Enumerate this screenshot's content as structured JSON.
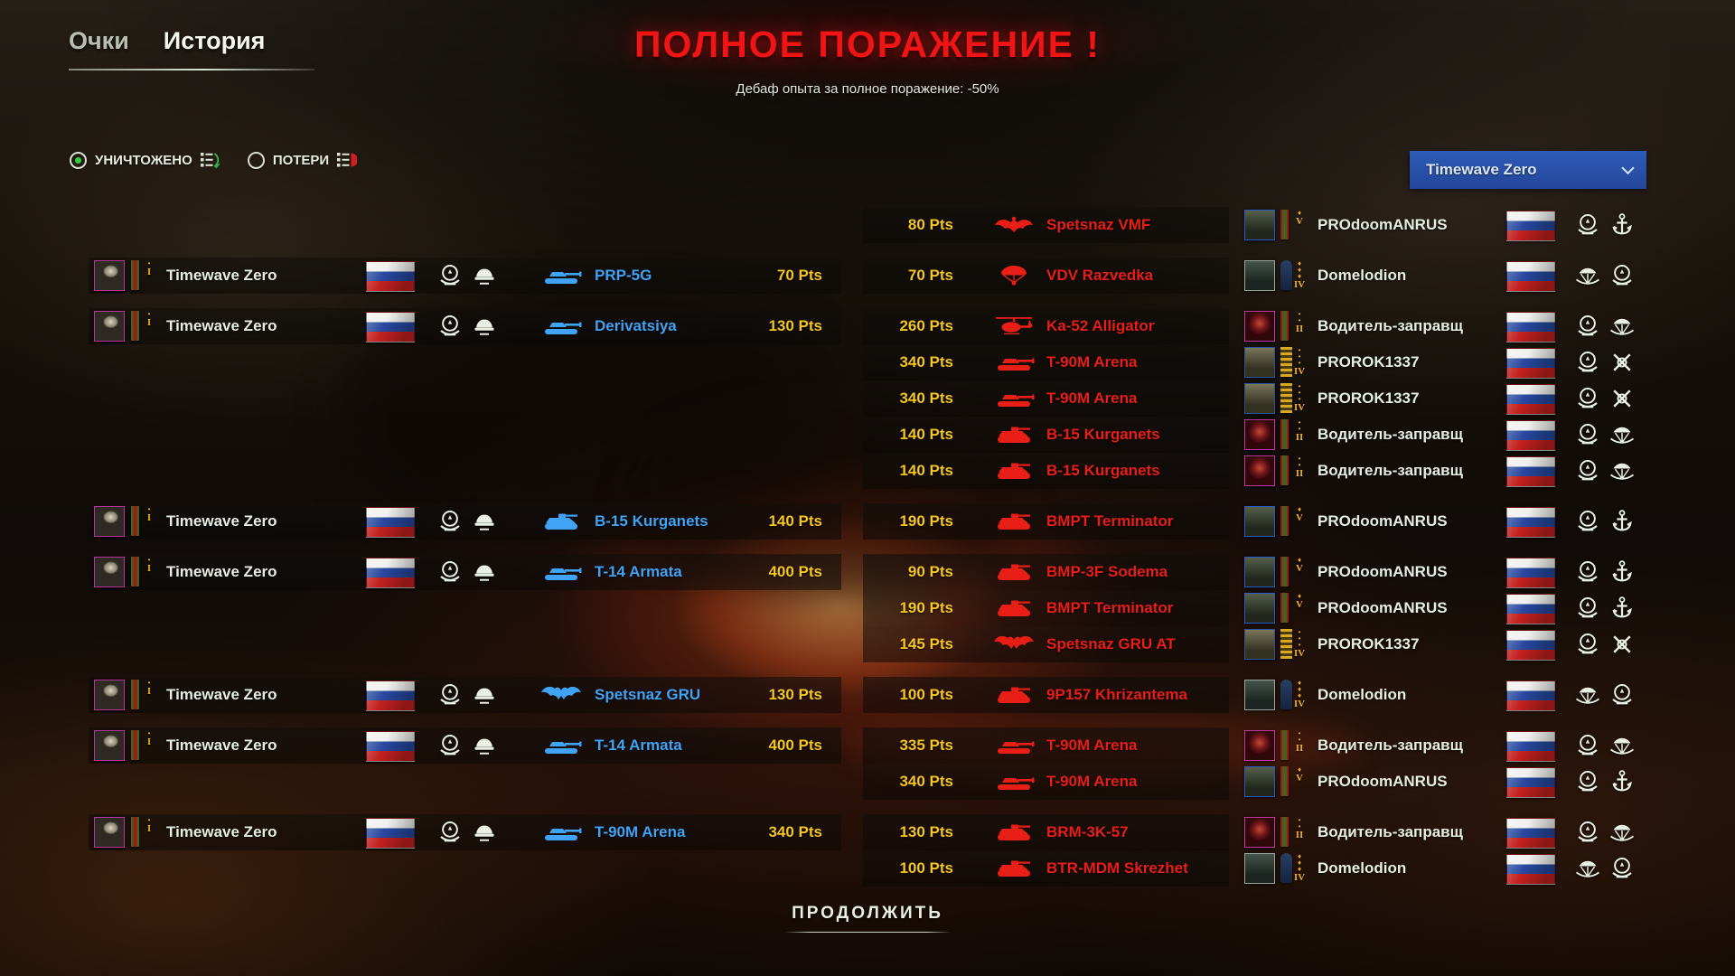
{
  "tabs": [
    {
      "label": "Очки",
      "active": false
    },
    {
      "label": "История",
      "active": true
    }
  ],
  "result": {
    "title": "ПОЛНОЕ ПОРАЖЕНИЕ !",
    "subtitle": "Дебаф опыта за полное поражение: -50%"
  },
  "filters": [
    {
      "label": "УНИЧТОЖЕНО",
      "selected": true,
      "icon": "destroyed-list-icon",
      "accent": "#2fae4a"
    },
    {
      "label": "ПОТЕРИ",
      "selected": false,
      "icon": "losses-list-icon",
      "accent": "#d41f1f"
    }
  ],
  "player_dropdown": {
    "selected": "Timewave Zero",
    "avatar": "timewave-avatar",
    "icon": "chevron-down-icon"
  },
  "continue_label": "ПРОДОЛЖИТЬ",
  "colors": {
    "title_red": "#f11414",
    "points_yellow": "#f5c61d",
    "ally_vehicle_blue": "#41a3f5",
    "enemy_vehicle_red": "#e81e17",
    "dropdown_blue": "#2e5cb8"
  },
  "ally": {
    "name": "Timewave Zero",
    "rank_numeral": "I",
    "pips": 1,
    "pip_glyph": "•",
    "avatar": "timewave-avatar",
    "insignia": "ribbon-green",
    "flag": "russia-flag",
    "emblems": [
      "wreath-emblem",
      "helmet-emblem"
    ]
  },
  "rows": [
    {
      "ally_vehicle": null,
      "ally_points": null,
      "ally_icon": null,
      "kill_points": "80 Pts",
      "kill_vehicle": "Spetsnaz VMF",
      "kill_icon": "infantry-eagle-icon",
      "player": {
        "name": "PROdoomANRUS",
        "rank_numeral": "V",
        "pips": 1,
        "pip_glyph": "♦",
        "avatar": "balaclava-avatar",
        "insignia": "ribbon-red",
        "flag": "russia-flag",
        "emblems": [
          "wreath-emblem",
          "anchor-emblem"
        ]
      }
    },
    {
      "ally_vehicle": "PRP-5G",
      "ally_points": "70 Pts",
      "ally_icon": "tank-icon",
      "kill_points": "70 Pts",
      "kill_vehicle": "VDV Razvedka",
      "kill_icon": "parachute-icon",
      "player": {
        "name": "Domelodion",
        "rank_numeral": "IV",
        "pips": 3,
        "pip_glyph": "♦",
        "avatar": "ghillie-avatar",
        "insignia": "epaulette",
        "flag": "russia-flag",
        "emblems": [
          "parachute-emblem",
          "wreath-emblem"
        ]
      }
    },
    {
      "ally_vehicle": "Derivatsiya",
      "ally_points": "130 Pts",
      "ally_icon": "tank-icon",
      "kill_points": "260 Pts",
      "kill_vehicle": "Ka-52 Alligator",
      "kill_icon": "helicopter-icon",
      "player": {
        "name": "Водитель-заправщ",
        "rank_numeral": "II",
        "pips": 2,
        "pip_glyph": "•",
        "avatar": "red-monster-avatar",
        "insignia": "ribbon-red",
        "flag": "russia-flag",
        "emblems": [
          "wreath-emblem",
          "parachute-emblem"
        ]
      }
    },
    {
      "ally_vehicle": null,
      "ally_points": null,
      "ally_icon": null,
      "kill_points": "340 Pts",
      "kill_vehicle": "T-90M Arena",
      "kill_icon": "tank-icon",
      "player": {
        "name": "PROROK1337",
        "rank_numeral": "IV",
        "pips": 3,
        "pip_glyph": "•",
        "avatar": "helmet-soldier-avatar",
        "insignia": "chevrons",
        "flag": "russia-flag",
        "emblems": [
          "wreath-emblem",
          "crossed-rifles-emblem"
        ]
      }
    },
    {
      "ally_vehicle": null,
      "ally_points": null,
      "ally_icon": null,
      "kill_points": "340 Pts",
      "kill_vehicle": "T-90M Arena",
      "kill_icon": "tank-icon",
      "player": {
        "name": "PROROK1337",
        "rank_numeral": "IV",
        "pips": 3,
        "pip_glyph": "•",
        "avatar": "helmet-soldier-avatar",
        "insignia": "chevrons",
        "flag": "russia-flag",
        "emblems": [
          "wreath-emblem",
          "crossed-rifles-emblem"
        ]
      }
    },
    {
      "ally_vehicle": null,
      "ally_points": null,
      "ally_icon": null,
      "kill_points": "140 Pts",
      "kill_vehicle": "B-15 Kurganets",
      "kill_icon": "ifv-icon",
      "player": {
        "name": "Водитель-заправщ",
        "rank_numeral": "II",
        "pips": 2,
        "pip_glyph": "•",
        "avatar": "red-monster-avatar",
        "insignia": "ribbon-red",
        "flag": "russia-flag",
        "emblems": [
          "wreath-emblem",
          "parachute-emblem"
        ]
      }
    },
    {
      "ally_vehicle": null,
      "ally_points": null,
      "ally_icon": null,
      "kill_points": "140 Pts",
      "kill_vehicle": "B-15 Kurganets",
      "kill_icon": "ifv-icon",
      "player": {
        "name": "Водитель-заправщ",
        "rank_numeral": "II",
        "pips": 2,
        "pip_glyph": "•",
        "avatar": "red-monster-avatar",
        "insignia": "ribbon-red",
        "flag": "russia-flag",
        "emblems": [
          "wreath-emblem",
          "parachute-emblem"
        ]
      }
    },
    {
      "ally_vehicle": "B-15 Kurganets",
      "ally_points": "140 Pts",
      "ally_icon": "ifv-icon",
      "kill_points": "190 Pts",
      "kill_vehicle": "BMPT Terminator",
      "kill_icon": "ifv-icon",
      "player": {
        "name": "PROdoomANRUS",
        "rank_numeral": "V",
        "pips": 1,
        "pip_glyph": "♦",
        "avatar": "balaclava-avatar",
        "insignia": "ribbon-red",
        "flag": "russia-flag",
        "emblems": [
          "wreath-emblem",
          "anchor-emblem"
        ]
      }
    },
    {
      "ally_vehicle": "T-14 Armata",
      "ally_points": "400 Pts",
      "ally_icon": "tank-icon",
      "kill_points": "90 Pts",
      "kill_vehicle": "BMP-3F Sodema",
      "kill_icon": "ifv-icon",
      "player": {
        "name": "PROdoomANRUS",
        "rank_numeral": "V",
        "pips": 1,
        "pip_glyph": "♦",
        "avatar": "balaclava-avatar",
        "insignia": "ribbon-red",
        "flag": "russia-flag",
        "emblems": [
          "wreath-emblem",
          "anchor-emblem"
        ]
      }
    },
    {
      "ally_vehicle": null,
      "ally_points": null,
      "ally_icon": null,
      "kill_points": "190 Pts",
      "kill_vehicle": "BMPT Terminator",
      "kill_icon": "ifv-icon",
      "player": {
        "name": "PROdoomANRUS",
        "rank_numeral": "V",
        "pips": 1,
        "pip_glyph": "♦",
        "avatar": "balaclava-avatar",
        "insignia": "ribbon-red",
        "flag": "russia-flag",
        "emblems": [
          "wreath-emblem",
          "anchor-emblem"
        ]
      }
    },
    {
      "ally_vehicle": null,
      "ally_points": null,
      "ally_icon": null,
      "kill_points": "145 Pts",
      "kill_vehicle": "Spetsnaz GRU AT",
      "kill_icon": "bat-icon",
      "player": {
        "name": "PROROK1337",
        "rank_numeral": "IV",
        "pips": 3,
        "pip_glyph": "•",
        "avatar": "helmet-soldier-avatar",
        "insignia": "chevrons",
        "flag": "russia-flag",
        "emblems": [
          "wreath-emblem",
          "crossed-rifles-emblem"
        ]
      }
    },
    {
      "ally_vehicle": "Spetsnaz GRU",
      "ally_points": "130 Pts",
      "ally_icon": "bat-icon",
      "kill_points": "100 Pts",
      "kill_vehicle": "9P157 Khrizantema",
      "kill_icon": "ifv-icon",
      "player": {
        "name": "Domelodion",
        "rank_numeral": "IV",
        "pips": 3,
        "pip_glyph": "♦",
        "avatar": "ghillie-avatar",
        "insignia": "epaulette",
        "flag": "russia-flag",
        "emblems": [
          "parachute-emblem",
          "wreath-emblem"
        ]
      }
    },
    {
      "ally_vehicle": "T-14 Armata",
      "ally_points": "400 Pts",
      "ally_icon": "tank-icon",
      "kill_points": "335 Pts",
      "kill_vehicle": "T-90M Arena",
      "kill_icon": "tank-icon",
      "player": {
        "name": "Водитель-заправщ",
        "rank_numeral": "II",
        "pips": 2,
        "pip_glyph": "•",
        "avatar": "red-monster-avatar",
        "insignia": "ribbon-red",
        "flag": "russia-flag",
        "emblems": [
          "wreath-emblem",
          "parachute-emblem"
        ]
      }
    },
    {
      "ally_vehicle": null,
      "ally_points": null,
      "ally_icon": null,
      "kill_points": "340 Pts",
      "kill_vehicle": "T-90M Arena",
      "kill_icon": "tank-icon",
      "player": {
        "name": "PROdoomANRUS",
        "rank_numeral": "V",
        "pips": 1,
        "pip_glyph": "♦",
        "avatar": "balaclava-avatar",
        "insignia": "ribbon-red",
        "flag": "russia-flag",
        "emblems": [
          "wreath-emblem",
          "anchor-emblem"
        ]
      }
    },
    {
      "ally_vehicle": "T-90M Arena",
      "ally_points": "340 Pts",
      "ally_icon": "tank-icon",
      "kill_points": "130 Pts",
      "kill_vehicle": "BRM-3K-57",
      "kill_icon": "ifv-icon",
      "player": {
        "name": "Водитель-заправщ",
        "rank_numeral": "II",
        "pips": 2,
        "pip_glyph": "•",
        "avatar": "red-monster-avatar",
        "insignia": "ribbon-red",
        "flag": "russia-flag",
        "emblems": [
          "wreath-emblem",
          "parachute-emblem"
        ]
      }
    },
    {
      "ally_vehicle": null,
      "ally_points": null,
      "ally_icon": null,
      "kill_points": "100 Pts",
      "kill_vehicle": "BTR-MDM Skrezhet",
      "kill_icon": "ifv-icon",
      "player": {
        "name": "Domelodion",
        "rank_numeral": "IV",
        "pips": 3,
        "pip_glyph": "♦",
        "avatar": "ghillie-avatar",
        "insignia": "epaulette",
        "flag": "russia-flag",
        "emblems": [
          "parachute-emblem",
          "wreath-emblem"
        ]
      }
    }
  ]
}
